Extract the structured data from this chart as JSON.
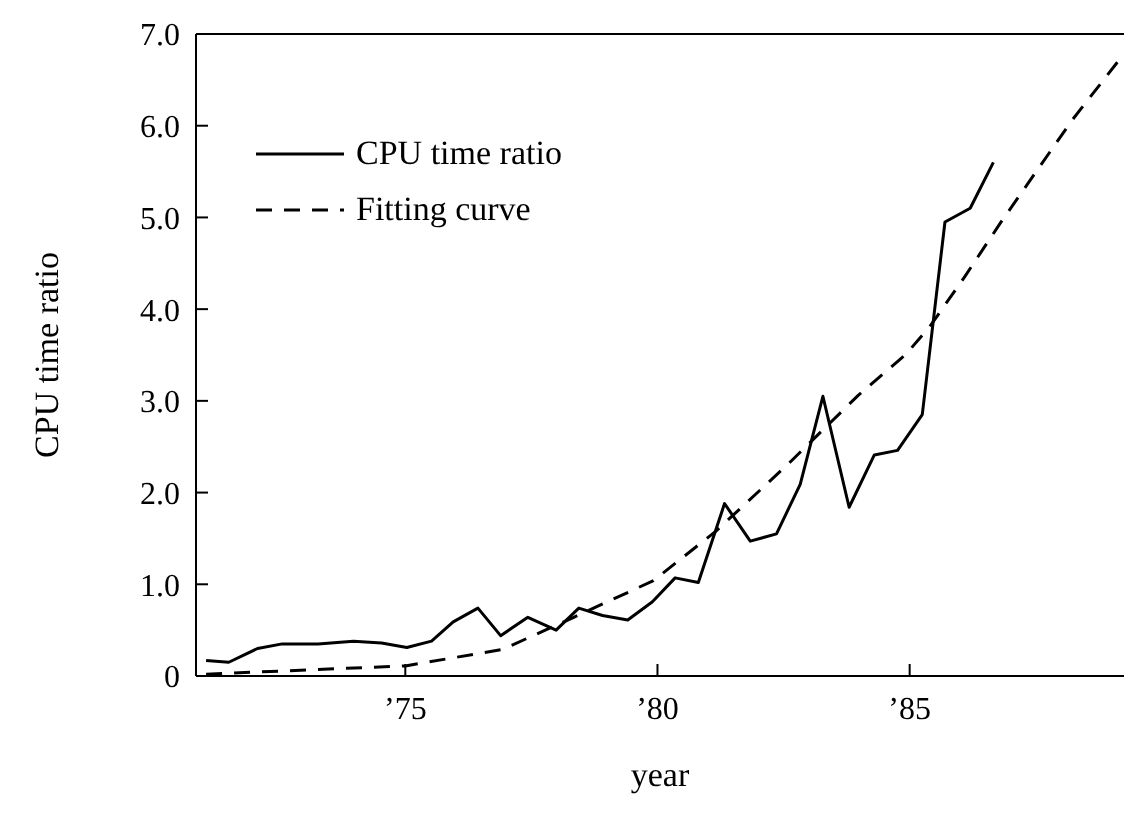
{
  "chart_data": {
    "type": "line",
    "xlabel": "year",
    "ylabel": "CPU time ratio",
    "xlim": [
      70.85,
      89.25
    ],
    "ylim": [
      0,
      7
    ],
    "xticks": [
      {
        "value": 75,
        "label": "’75"
      },
      {
        "value": 80,
        "label": "’80"
      },
      {
        "value": 85,
        "label": "’85"
      }
    ],
    "yticks": [
      0,
      {
        "value": 1,
        "label": "1.0"
      },
      {
        "value": 2,
        "label": "2.0"
      },
      {
        "value": 3,
        "label": "3.0"
      },
      {
        "value": 4,
        "label": "4.0"
      },
      {
        "value": 5,
        "label": "5.0"
      },
      {
        "value": 6,
        "label": "6.0"
      },
      {
        "value": 7,
        "label": "7.0"
      }
    ],
    "legend": "top left",
    "marker": "none",
    "series": [
      {
        "name": "CPU time ratio",
        "color": "#000000",
        "line_style": "solid",
        "x": [
          71.05,
          71.5,
          72.07,
          72.56,
          73.27,
          73.97,
          74.53,
          75.03,
          75.52,
          75.95,
          76.44,
          76.89,
          77.43,
          77.99,
          78.44,
          78.91,
          79.41,
          79.9,
          80.35,
          80.81,
          81.33,
          81.84,
          82.36,
          82.83,
          83.28,
          83.8,
          84.3,
          84.76,
          85.25,
          85.7,
          86.2,
          86.66
        ],
        "values": [
          0.17,
          0.15,
          0.3,
          0.35,
          0.35,
          0.38,
          0.36,
          0.31,
          0.38,
          0.59,
          0.74,
          0.44,
          0.64,
          0.5,
          0.74,
          0.66,
          0.61,
          0.81,
          1.07,
          1.02,
          1.88,
          1.47,
          1.55,
          2.09,
          3.05,
          1.84,
          2.41,
          2.46,
          2.85,
          4.95,
          5.1,
          5.6
        ]
      },
      {
        "name": "Fitting curve",
        "color": "#000000",
        "line_style": "dashed",
        "x": [
          71.05,
          75,
          76.93,
          78.34,
          79.92,
          81.16,
          82.57,
          83.98,
          84.93,
          85.4,
          86.1,
          86.8,
          87.51,
          88.22,
          89.13
        ],
        "values": [
          0.02,
          0.11,
          0.29,
          0.64,
          1.04,
          1.58,
          2.3,
          3.06,
          3.51,
          3.81,
          4.36,
          4.94,
          5.5,
          6.06,
          6.7
        ]
      }
    ]
  }
}
